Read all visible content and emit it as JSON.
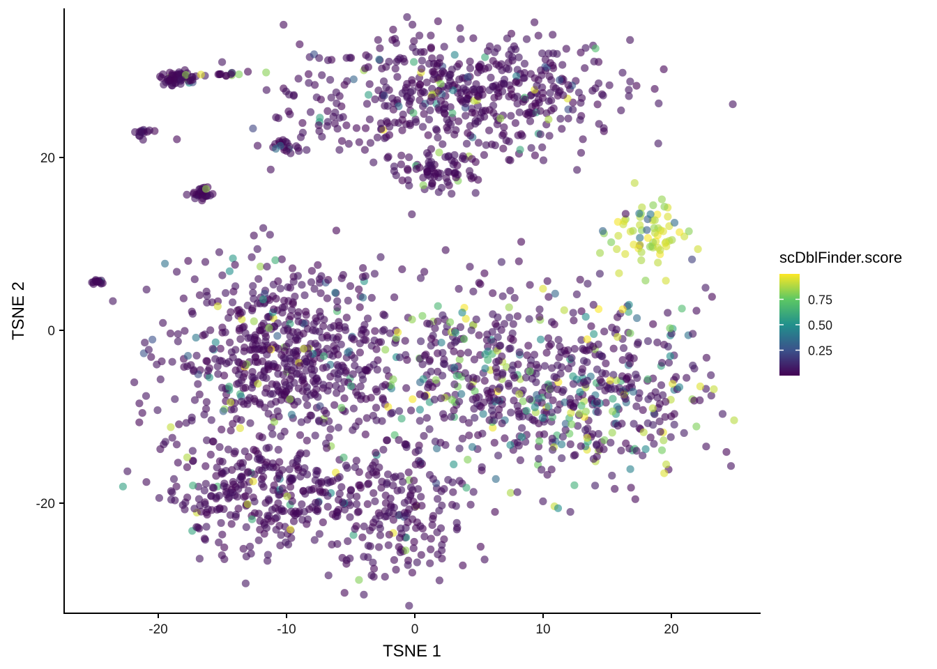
{
  "chart_data": {
    "type": "scatter",
    "xlabel": "TSNE 1",
    "ylabel": "TSNE 2",
    "xlim": [
      -27.5,
      27
    ],
    "ylim": [
      -33,
      37
    ],
    "xticks": [
      -20,
      -10,
      0,
      10,
      20
    ],
    "yticks": [
      -20,
      0,
      20
    ],
    "xtick_labels": [
      "-20",
      "-10",
      "0",
      "10",
      "20"
    ],
    "ytick_labels": [
      "-20",
      "0",
      "20"
    ],
    "grid": false,
    "point_opacity": 0.6,
    "legend": {
      "title": "scDblFinder.score",
      "placement": "right",
      "type": "colorbar",
      "range": [
        0.0,
        1.0
      ],
      "ticks": [
        0.25,
        0.5,
        0.75
      ],
      "tick_labels": [
        "0.25",
        "0.50",
        "0.75"
      ],
      "colormap": "viridis",
      "colors": [
        "#440154",
        "#3b528b",
        "#21908c",
        "#5dc863",
        "#fde725"
      ]
    },
    "clusters": [
      {
        "cx": 3.5,
        "cy": 27.5,
        "sx": 6.5,
        "sy": 3.5,
        "n": 520,
        "score": "low"
      },
      {
        "cx": 1.5,
        "cy": 18.5,
        "sx": 1.6,
        "sy": 1.2,
        "n": 70,
        "score": "low"
      },
      {
        "cx": -18.5,
        "cy": 29.2,
        "sx": 0.7,
        "sy": 0.4,
        "n": 55,
        "score": "low"
      },
      {
        "cx": -15,
        "cy": 29.6,
        "sx": 1.3,
        "sy": 0.2,
        "n": 16,
        "score": "mixed"
      },
      {
        "cx": -21,
        "cy": 23,
        "sx": 0.4,
        "sy": 0.3,
        "n": 14,
        "score": "low"
      },
      {
        "cx": -16.5,
        "cy": 15.8,
        "sx": 0.45,
        "sy": 0.45,
        "n": 30,
        "score": "low"
      },
      {
        "cx": -10,
        "cy": 21.3,
        "sx": 0.6,
        "sy": 0.4,
        "n": 22,
        "score": "low"
      },
      {
        "cx": -7,
        "cy": 23.5,
        "sx": 1,
        "sy": 0.5,
        "n": 12,
        "score": "mixed"
      },
      {
        "cx": -24.8,
        "cy": 5.6,
        "sx": 0.3,
        "sy": 0.15,
        "n": 14,
        "score": "low"
      },
      {
        "cx": 18,
        "cy": 11,
        "sx": 1.5,
        "sy": 2.2,
        "n": 70,
        "score": "high"
      },
      {
        "cx": -10,
        "cy": -3,
        "sx": 4.5,
        "sy": 5,
        "n": 620,
        "score": "low"
      },
      {
        "cx": -12,
        "cy": -19,
        "sx": 3.5,
        "sy": 3.5,
        "n": 300,
        "score": "low"
      },
      {
        "cx": -1.5,
        "cy": -21,
        "sx": 3,
        "sy": 4,
        "n": 200,
        "score": "low"
      },
      {
        "cx": 5,
        "cy": -5,
        "sx": 4,
        "sy": 5.5,
        "n": 300,
        "score": "mixed"
      },
      {
        "cx": 14,
        "cy": -7,
        "sx": 4.5,
        "sy": 5,
        "n": 380,
        "score": "mixed"
      }
    ]
  }
}
